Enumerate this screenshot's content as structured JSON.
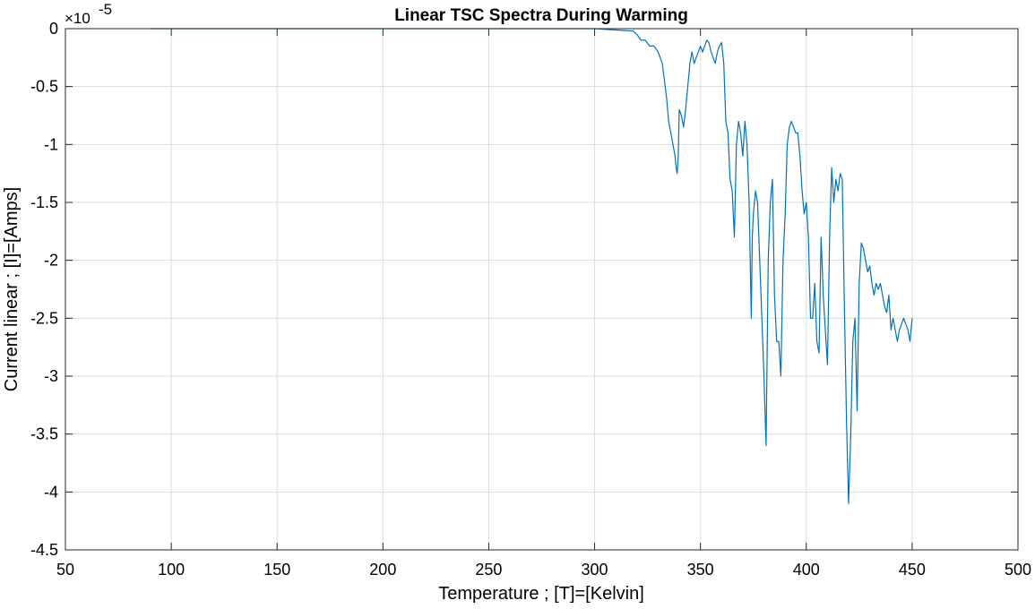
{
  "chart_data": {
    "type": "line",
    "title": "Linear TSC Spectra During Warming",
    "xlabel": "Temperature ; [T]=[Kelvin]",
    "ylabel": "Current linear ; [I]=[Amps]",
    "y_exponent_base": "×10",
    "y_exponent_power": "-5",
    "xlim": [
      50,
      500
    ],
    "ylim": [
      -4.5,
      0
    ],
    "y_unit_multiplier": 1e-05,
    "x_ticks": [
      50,
      100,
      150,
      200,
      250,
      300,
      350,
      400,
      450,
      500
    ],
    "x_tick_labels": [
      "50",
      "100",
      "150",
      "200",
      "250",
      "300",
      "350",
      "400",
      "450",
      "500"
    ],
    "y_ticks": [
      0,
      -0.5,
      -1,
      -1.5,
      -2,
      -2.5,
      -3,
      -3.5,
      -4,
      -4.5
    ],
    "y_tick_labels": [
      "0",
      "-0.5",
      "-1",
      "-1.5",
      "-2",
      "-2.5",
      "-3",
      "-3.5",
      "-4",
      "-4.5"
    ],
    "grid": true,
    "line_color": "#0072BD",
    "series": [
      {
        "x": [
          90,
          150,
          200,
          250,
          300,
          318,
          320,
          322,
          324,
          326,
          328,
          330,
          332,
          334,
          335,
          336,
          337,
          338,
          338.5,
          339,
          339.5,
          340,
          341,
          342,
          343,
          344,
          345,
          346,
          347,
          348,
          349,
          350,
          351,
          352,
          353,
          354,
          355,
          356,
          357,
          358,
          359,
          360,
          361,
          362,
          363,
          364,
          365,
          366,
          367,
          368,
          369,
          370,
          371,
          372,
          373,
          374,
          374.5,
          375,
          376,
          377,
          378,
          379,
          380,
          381,
          382,
          383,
          384,
          385,
          386,
          387,
          388,
          389,
          390,
          391,
          392,
          393,
          394,
          395,
          396,
          397,
          398,
          399,
          400,
          401,
          402,
          403,
          404,
          405,
          406,
          407,
          408,
          409,
          410,
          411,
          412,
          413,
          414,
          415,
          416,
          417,
          418,
          419,
          420,
          421,
          422,
          423,
          424,
          425,
          426,
          427,
          428,
          429,
          430,
          431,
          432,
          433,
          434,
          435,
          436,
          437,
          438,
          439,
          440,
          441,
          442,
          443,
          444,
          445,
          446,
          447,
          448,
          449,
          450
        ],
        "y": [
          0,
          0,
          0,
          0,
          0,
          -0.02,
          -0.05,
          -0.1,
          -0.1,
          -0.15,
          -0.15,
          -0.2,
          -0.3,
          -0.6,
          -0.8,
          -0.9,
          -1.0,
          -1.1,
          -1.2,
          -1.25,
          -1.1,
          -0.7,
          -0.75,
          -0.85,
          -0.7,
          -0.5,
          -0.3,
          -0.2,
          -0.3,
          -0.25,
          -0.2,
          -0.15,
          -0.2,
          -0.15,
          -0.1,
          -0.12,
          -0.2,
          -0.25,
          -0.3,
          -0.2,
          -0.15,
          -0.12,
          -0.3,
          -0.8,
          -0.9,
          -1.3,
          -1.4,
          -1.8,
          -1.0,
          -0.8,
          -0.9,
          -1.1,
          -0.8,
          -1.0,
          -1.5,
          -2.5,
          -1.8,
          -1.6,
          -1.4,
          -1.5,
          -2.0,
          -2.5,
          -3.0,
          -3.6,
          -2.0,
          -1.5,
          -1.3,
          -2.3,
          -2.7,
          -2.7,
          -3.0,
          -2.0,
          -1.6,
          -1.0,
          -0.85,
          -0.8,
          -0.85,
          -0.9,
          -0.9,
          -1.1,
          -1.4,
          -1.6,
          -1.5,
          -1.8,
          -2.5,
          -2.5,
          -2.2,
          -2.7,
          -2.8,
          -1.8,
          -2.3,
          -2.6,
          -2.9,
          -1.8,
          -1.2,
          -1.5,
          -1.3,
          -1.4,
          -1.25,
          -1.3,
          -2.4,
          -3.4,
          -4.1,
          -3.5,
          -2.7,
          -2.5,
          -3.3,
          -2.2,
          -1.85,
          -1.9,
          -2.0,
          -2.1,
          -2.05,
          -2.2,
          -2.3,
          -2.2,
          -2.25,
          -2.2,
          -2.3,
          -2.4,
          -2.45,
          -2.3,
          -2.6,
          -2.5,
          -2.6,
          -2.7,
          -2.6,
          -2.55,
          -2.5,
          -2.55,
          -2.6,
          -2.7,
          -2.5
        ]
      }
    ]
  }
}
